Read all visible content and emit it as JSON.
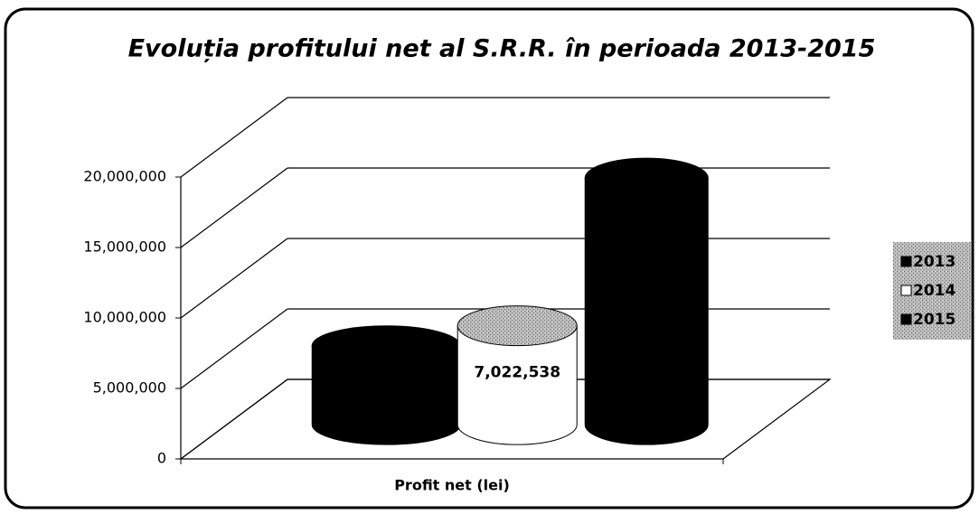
{
  "chart_data": {
    "type": "bar3d",
    "title": "Evoluția profitului net al S.R.R. în perioada 2013-2015",
    "categories": [
      "Profit net (lei)"
    ],
    "series": [
      {
        "name": "2013",
        "color": "#000000",
        "values": [
          5600000
        ]
      },
      {
        "name": "2014",
        "color": "#ffffff",
        "values": [
          7022538
        ],
        "value_labels": [
          "7,022,538"
        ]
      },
      {
        "name": "2015",
        "color": "#000000",
        "values": [
          17500000
        ]
      }
    ],
    "ylim": [
      0,
      20000000
    ],
    "yticks": [
      0,
      {
        "value": 5000000,
        "label": "5,000,000"
      },
      {
        "value": 10000000,
        "label": "10,000,000"
      },
      {
        "value": 15000000,
        "label": "15,000,000"
      },
      {
        "value": 20000000,
        "label": "20,000,000"
      }
    ],
    "grid": true,
    "legend": "right"
  }
}
